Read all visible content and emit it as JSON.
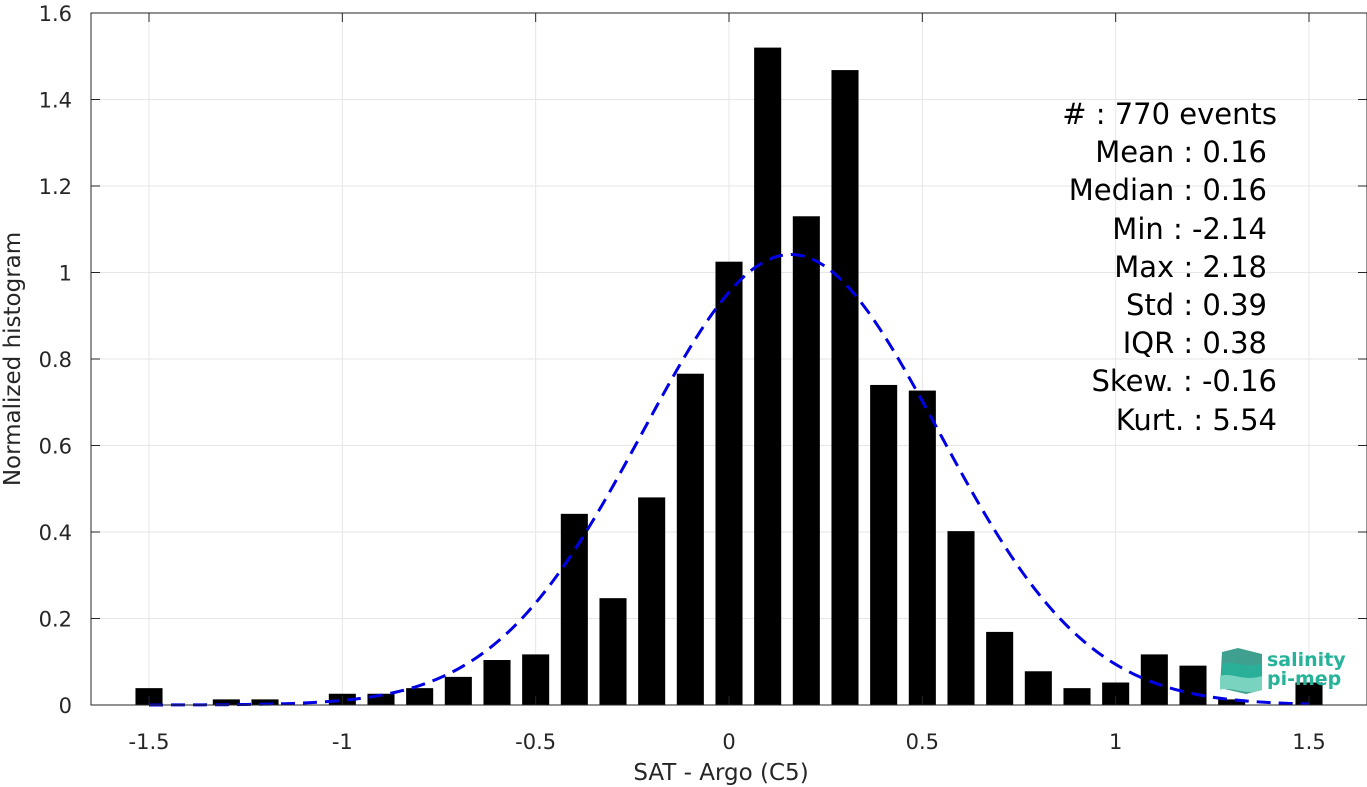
{
  "chart_data": {
    "type": "bar",
    "xlabel": "SAT - Argo (C5)",
    "ylabel": "Normalized histogram",
    "xlim": [
      -1.65,
      1.65
    ],
    "ylim": [
      0,
      1.6
    ],
    "grid": true,
    "xticks": [
      -1.5,
      -1,
      -0.5,
      0,
      0.5,
      1,
      1.5
    ],
    "xtick_labels": [
      "-1.5",
      "-1",
      "-0.5",
      "0",
      "0.5",
      "1",
      "1.5"
    ],
    "yticks": [
      0,
      0.2,
      0.4,
      0.6,
      0.8,
      1,
      1.2,
      1.4,
      1.6
    ],
    "ytick_labels": [
      "0",
      "0.2",
      "0.4",
      "0.6",
      "0.8",
      "1",
      "1.2",
      "1.4",
      "1.6"
    ],
    "bar_color": "#000000",
    "bin_width": 0.1,
    "bins": {
      "x": [
        -1.5,
        -1.4,
        -1.3,
        -1.2,
        -1.1,
        -1.0,
        -0.9,
        -0.8,
        -0.7,
        -0.6,
        -0.5,
        -0.4,
        -0.3,
        -0.2,
        -0.1,
        0.0,
        0.1,
        0.2,
        0.3,
        0.4,
        0.5,
        0.6,
        0.7,
        0.8,
        0.9,
        1.0,
        1.1,
        1.2,
        1.3,
        1.5
      ],
      "values": [
        0.039,
        0.0,
        0.013,
        0.013,
        0.0,
        0.026,
        0.026,
        0.039,
        0.065,
        0.104,
        0.117,
        0.442,
        0.247,
        0.48,
        0.766,
        1.025,
        1.52,
        1.13,
        1.468,
        0.74,
        0.727,
        0.402,
        0.169,
        0.078,
        0.039,
        0.052,
        0.117,
        0.091,
        0.013,
        0.052
      ]
    },
    "fit": {
      "name": "",
      "style": "dashed",
      "color": "#0000e6",
      "mean": 0.16,
      "std": 0.383,
      "x_range": [
        -1.5,
        1.5
      ]
    },
    "stats": [
      {
        "label": "#  : 770 events"
      },
      {
        "label": "Mean : 0.16"
      },
      {
        "label": "Median : 0.16"
      },
      {
        "label": "Min : -2.14"
      },
      {
        "label": "Max : 2.18"
      },
      {
        "label": "Std : 0.39"
      },
      {
        "label": "IQR : 0.38"
      },
      {
        "label": "Skew. : -0.16"
      },
      {
        "label": "Kurt. : 5.54"
      }
    ]
  },
  "logo": {
    "line1": "salinity",
    "line2": "pi-mep",
    "color": "#27b39a"
  }
}
